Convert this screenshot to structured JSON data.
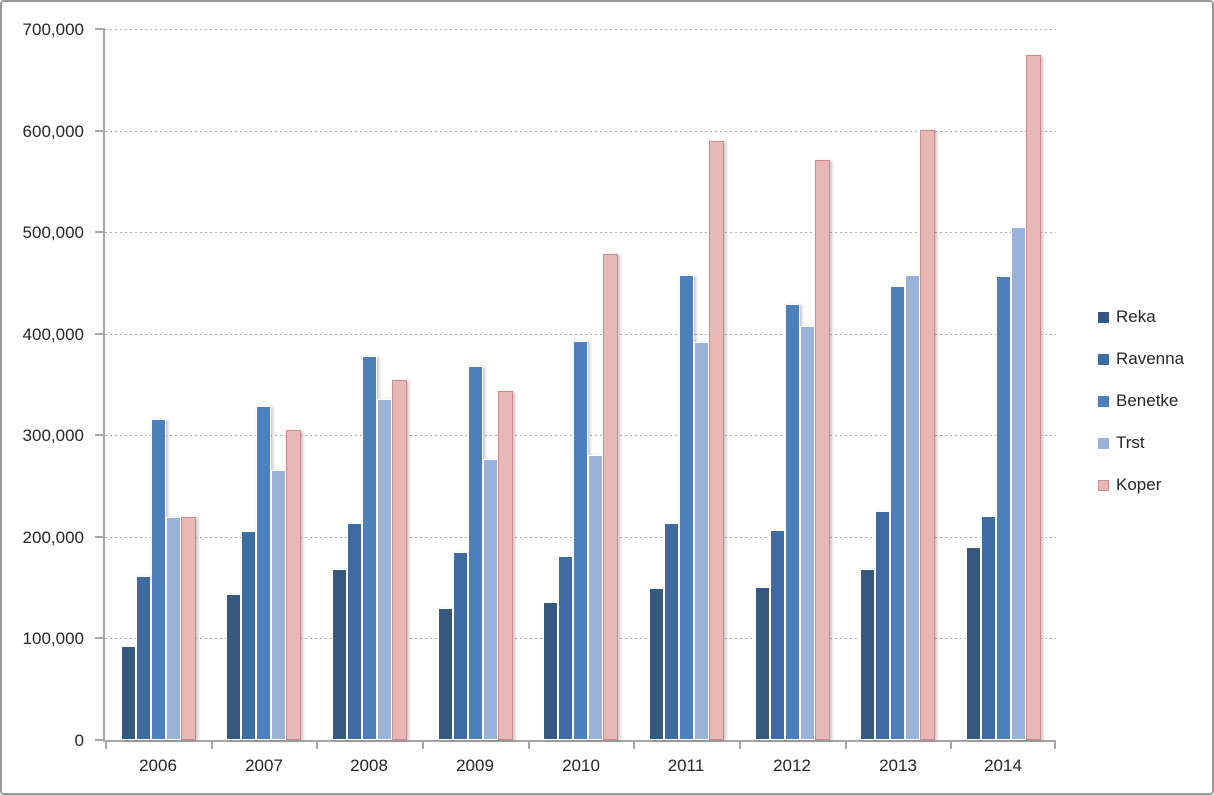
{
  "chart_data": {
    "type": "bar",
    "title": "",
    "xlabel": "",
    "ylabel": "",
    "categories": [
      "2006",
      "2007",
      "2008",
      "2009",
      "2010",
      "2011",
      "2012",
      "2013",
      "2014"
    ],
    "series": [
      {
        "name": "Reka",
        "color": "#36587F",
        "values": [
          93000,
          144000,
          168000,
          130000,
          136000,
          150000,
          151000,
          168000,
          190000
        ]
      },
      {
        "name": "Ravenna",
        "color": "#3F6BA3",
        "values": [
          161000,
          206000,
          214000,
          185000,
          181000,
          214000,
          207000,
          225000,
          221000
        ]
      },
      {
        "name": "Benetke",
        "color": "#4C80BC",
        "values": [
          316000,
          329000,
          378000,
          368000,
          393000,
          458000,
          429000,
          447000,
          457000
        ]
      },
      {
        "name": "Trst",
        "color": "#98B2D9",
        "values": [
          220000,
          266000,
          336000,
          277000,
          281000,
          392000,
          408000,
          458000,
          505000
        ]
      },
      {
        "name": "Koper",
        "color": "#E7B8B6",
        "border_color": "#C98C8A",
        "values": [
          220000,
          305000,
          354000,
          344000,
          478000,
          590000,
          571000,
          601000,
          674000
        ]
      }
    ],
    "ylim": [
      0,
      700000
    ],
    "ytick_step": 100000,
    "ytick_labels": [
      "0",
      "100,000",
      "200,000",
      "300,000",
      "400,000",
      "500,000",
      "600,000",
      "700,000"
    ],
    "grid": "horizontal-dotted",
    "legend_position": "right",
    "colors": {
      "axis_line": "#a6a6a6",
      "gridline": "#ababab",
      "text": "#262626",
      "frame_border": "#9a9a9a",
      "background": "#ffffff"
    }
  }
}
